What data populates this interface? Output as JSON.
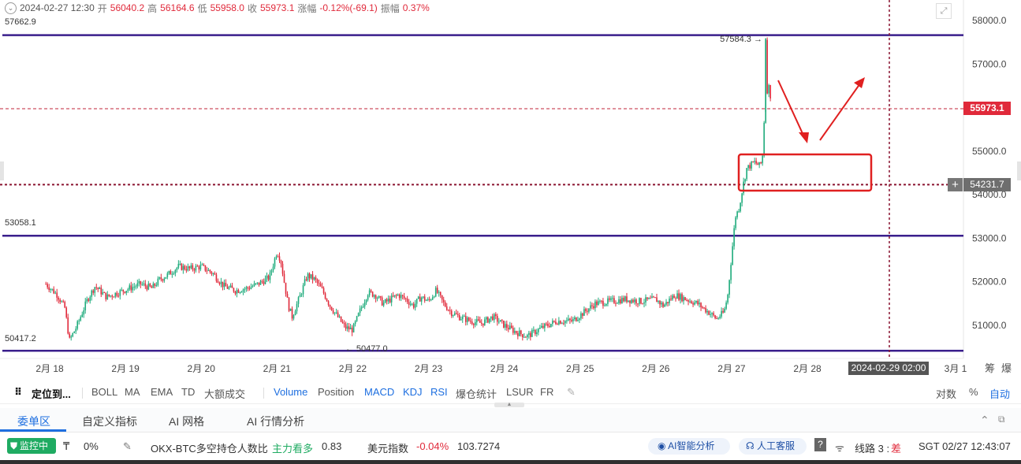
{
  "ohlc": {
    "date": "2024-02-27 12:30",
    "open_label": "开",
    "open": "56040.2",
    "high_label": "高",
    "high": "56164.6",
    "low_label": "低",
    "low": "55958.0",
    "close_label": "收",
    "close": "55973.1",
    "change_label": "涨幅",
    "change": "-0.12%(-69.1)",
    "amp_label": "振幅",
    "amp": "0.37%"
  },
  "levels": {
    "top": "57662.9",
    "mid": "53058.1",
    "bottom": "50417.2"
  },
  "price_tags": {
    "last": "55973.1",
    "cursor": "54231.7",
    "cursor_plus": "+"
  },
  "cursor_date": "2024-02-29 02:00",
  "chart_data": {
    "type": "candlestick",
    "x_ticks": [
      "2月 18",
      "2月 19",
      "2月 20",
      "2月 21",
      "2月 22",
      "2月 23",
      "2月 24",
      "2月 25",
      "2月 26",
      "2月 27",
      "2月 28",
      "3月 1"
    ],
    "y_ticks": [
      "58000.0",
      "57000.0",
      "56000.0",
      "55000.0",
      "54000.0",
      "53000.0",
      "52000.0",
      "51000.0"
    ],
    "ylim": [
      50200,
      58400
    ],
    "annotations": {
      "high_marker": "57584.3",
      "low_marker": "50477.0"
    },
    "horizontal_levels": [
      57662.9,
      53058.1,
      50417.2
    ],
    "last_price": 55973.1,
    "cursor_price": 54231.7,
    "up_color": "#1fab7c",
    "down_color": "#e0293a",
    "level_color": "#3a1f8c",
    "marker_color": "#e02020",
    "path": [
      [
        17.95,
        51950
      ],
      [
        18.1,
        51700
      ],
      [
        18.2,
        51400
      ],
      [
        18.26,
        50650
      ],
      [
        18.35,
        50950
      ],
      [
        18.42,
        51250
      ],
      [
        18.5,
        51600
      ],
      [
        18.6,
        51900
      ],
      [
        18.75,
        51650
      ],
      [
        18.9,
        51750
      ],
      [
        19.05,
        51850
      ],
      [
        19.2,
        51950
      ],
      [
        19.35,
        51850
      ],
      [
        19.45,
        52050
      ],
      [
        19.55,
        52150
      ],
      [
        19.7,
        52350
      ],
      [
        19.85,
        52300
      ],
      [
        20.0,
        52350
      ],
      [
        20.15,
        52200
      ],
      [
        20.3,
        51900
      ],
      [
        20.45,
        51800
      ],
      [
        20.6,
        51850
      ],
      [
        20.75,
        51950
      ],
      [
        20.9,
        52100
      ],
      [
        21.0,
        52700
      ],
      [
        21.05,
        52500
      ],
      [
        21.1,
        51950
      ],
      [
        21.15,
        51450
      ],
      [
        21.2,
        51200
      ],
      [
        21.3,
        51650
      ],
      [
        21.4,
        52150
      ],
      [
        21.5,
        52050
      ],
      [
        21.6,
        51800
      ],
      [
        21.7,
        51450
      ],
      [
        21.8,
        51200
      ],
      [
        21.9,
        50950
      ],
      [
        22.0,
        50900
      ],
      [
        22.1,
        51350
      ],
      [
        22.2,
        51750
      ],
      [
        22.3,
        51700
      ],
      [
        22.4,
        51500
      ],
      [
        22.5,
        51600
      ],
      [
        22.6,
        51700
      ],
      [
        22.7,
        51600
      ],
      [
        22.8,
        51450
      ],
      [
        22.9,
        51650
      ],
      [
        23.0,
        51550
      ],
      [
        23.1,
        51800
      ],
      [
        23.2,
        51500
      ],
      [
        23.3,
        51300
      ],
      [
        23.4,
        51200
      ],
      [
        23.55,
        51100
      ],
      [
        23.7,
        51050
      ],
      [
        23.85,
        51200
      ],
      [
        24.0,
        51000
      ],
      [
        24.15,
        50850
      ],
      [
        24.3,
        50750
      ],
      [
        24.5,
        50950
      ],
      [
        24.7,
        51100
      ],
      [
        24.9,
        51100
      ],
      [
        25.05,
        51300
      ],
      [
        25.2,
        51500
      ],
      [
        25.4,
        51550
      ],
      [
        25.6,
        51600
      ],
      [
        25.8,
        51550
      ],
      [
        26.0,
        51600
      ],
      [
        26.1,
        51450
      ],
      [
        26.25,
        51700
      ],
      [
        26.4,
        51600
      ],
      [
        26.55,
        51500
      ],
      [
        26.7,
        51300
      ],
      [
        26.8,
        51150
      ],
      [
        26.9,
        51300
      ],
      [
        26.95,
        51700
      ],
      [
        27.0,
        52600
      ],
      [
        27.05,
        53500
      ],
      [
        27.1,
        53700
      ],
      [
        27.15,
        54200
      ],
      [
        27.2,
        54600
      ],
      [
        27.3,
        54750
      ],
      [
        27.38,
        54650
      ],
      [
        27.42,
        55000
      ],
      [
        27.44,
        56500
      ],
      [
        27.45,
        57584.3
      ],
      [
        27.47,
        56400
      ],
      [
        27.5,
        56500
      ],
      [
        27.53,
        55973.1
      ]
    ]
  },
  "toolbar": {
    "locate": "定位到...",
    "items": [
      "BOLL",
      "MA",
      "EMA",
      "TD",
      "大额成交",
      "Volume",
      "Position",
      "MACD",
      "KDJ",
      "RSI",
      "爆仓统计",
      "LSUR",
      "FR"
    ],
    "right_items": [
      "对数",
      "%",
      "自动"
    ],
    "edit_icon": "pencil-square-icon"
  },
  "tabs": {
    "items": [
      "委单区",
      "自定义指标",
      "AI 网格",
      "AI 行情分析"
    ]
  },
  "status": {
    "monitor": "监控中",
    "percent": "0%",
    "holder_ratio_label": "OKX-BTC多空持仓人数比",
    "holder_ratio_signal": "主力看多",
    "holder_ratio_value": "0.83",
    "usd_index_label": "美元指数",
    "usd_index_change": "-0.04%",
    "usd_index_value": "103.7274",
    "ai_analysis": "AI智能分析",
    "support": "人工客服",
    "line_label": "线路 3 :",
    "line_quality": "差",
    "clock": "SGT  02/27 12:43:07"
  }
}
